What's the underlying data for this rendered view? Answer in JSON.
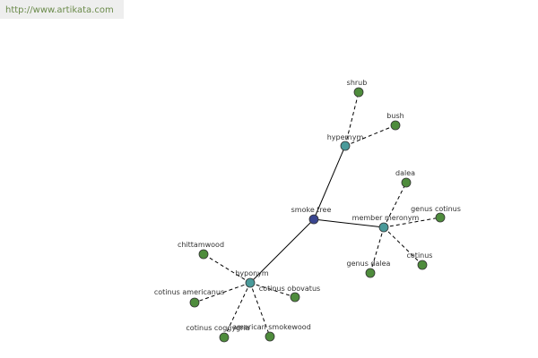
{
  "header": {
    "url": "http://www.artikata.com"
  },
  "nodes": [
    {
      "label": "smoke tree"
    },
    {
      "label": "hypernym"
    },
    {
      "label": "shrub"
    },
    {
      "label": "bush"
    },
    {
      "label": "member meronym"
    },
    {
      "label": "dalea"
    },
    {
      "label": "genus cotinus"
    },
    {
      "label": "cotinus"
    },
    {
      "label": "genus dalea"
    },
    {
      "label": "hyponym"
    },
    {
      "label": "chittamwood"
    },
    {
      "label": "cotinus americanus"
    },
    {
      "label": "cotinus obovatus"
    },
    {
      "label": "cotinus coggygria"
    },
    {
      "label": "american smokewood"
    }
  ]
}
